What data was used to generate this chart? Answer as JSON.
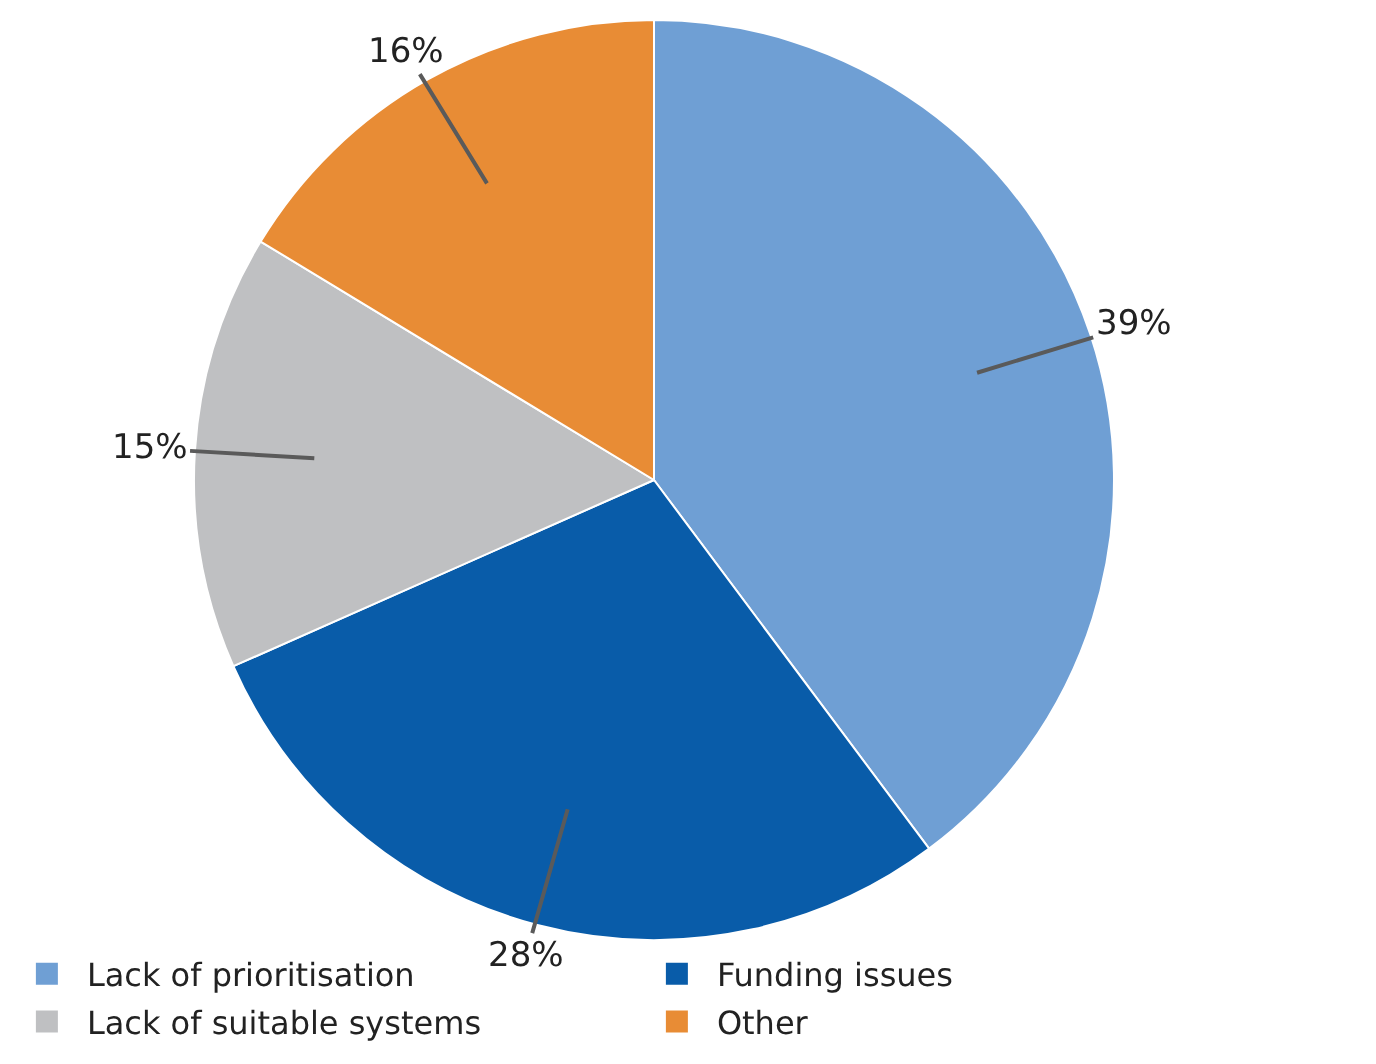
{
  "chart_data": {
    "type": "pie",
    "categories": [
      "Lack of prioritisation",
      "Funding issues",
      "Lack of suitable systems",
      "Other"
    ],
    "values": [
      39,
      28,
      15,
      16
    ],
    "colors": [
      "#6f9fd4",
      "#095ca9",
      "#bfc0c2",
      "#e88c35"
    ],
    "value_labels": [
      "39%",
      "28%",
      "15%",
      "16%"
    ],
    "legend": "bottom"
  }
}
